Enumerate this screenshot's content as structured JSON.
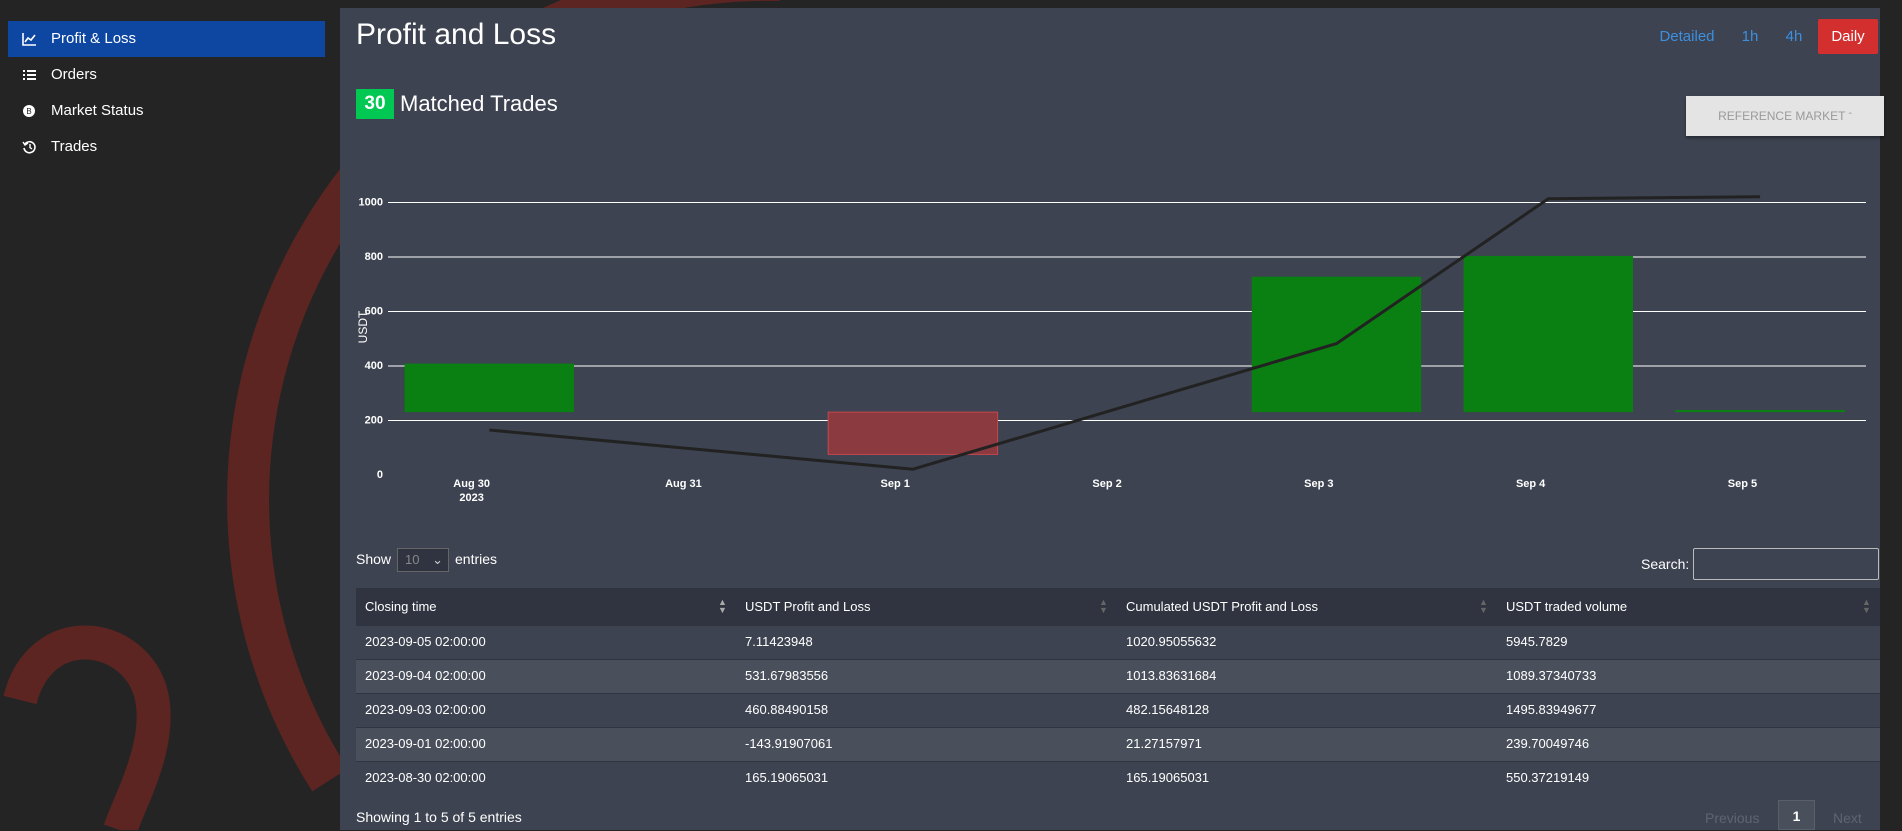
{
  "sidebar": {
    "items": [
      "Profit & Loss",
      "Orders",
      "Market Status",
      "Trades"
    ],
    "active": 0
  },
  "header": {
    "title": "Profit and Loss",
    "timeframes": [
      "Detailed",
      "1h",
      "4h",
      "Daily"
    ],
    "active_timeframe": 3
  },
  "summary": {
    "count": 30,
    "label": "Matched Trades"
  },
  "reference_button": "REFERENCE MARKET",
  "chart_data": {
    "type": "bar",
    "y_label": "USDT",
    "x": [
      "2023-08-30 02:00:00",
      "2023-09-01 02:00:00",
      "2023-09-03 02:00:00",
      "2023-09-04 02:00:00",
      "2023-09-05 02:00:00"
    ],
    "xlim": [
      "2023-08-29 14:45:00",
      "2023-09-05 14:00:00"
    ],
    "xticks": [
      {
        "value": "2023-08-30",
        "label": "Aug 30",
        "sublabel": "2023"
      },
      {
        "value": "2023-08-31",
        "label": "Aug 31"
      },
      {
        "value": "2023-09-01",
        "label": "Sep 1"
      },
      {
        "value": "2023-09-02",
        "label": "Sep 2"
      },
      {
        "value": "2023-09-03",
        "label": "Sep 3"
      },
      {
        "value": "2023-09-04",
        "label": "Sep 4"
      },
      {
        "value": "2023-09-05",
        "label": "Sep 5"
      }
    ],
    "ylim": [
      0,
      1200
    ],
    "yticks": [
      0,
      200,
      400,
      600,
      800,
      1000
    ],
    "y2lim": [
      -214,
      899
    ],
    "grid": true,
    "series": [
      {
        "type": "bar",
        "axis": "y2",
        "color": "#0b8012",
        "negative_color": "#8b3a3f",
        "values": [
          165.19065031,
          -143.91907061,
          460.88490158,
          531.67983556,
          7.11423948
        ]
      },
      {
        "type": "line",
        "color": "#222222",
        "values": [
          165.19065031,
          21.27157971,
          482.15648128,
          1013.83631684,
          1020.95055632
        ]
      }
    ]
  },
  "table": {
    "show_label": "Show",
    "page_size": "10",
    "entries_label": "entries",
    "search_label": "Search:",
    "columns": [
      "Closing time",
      "USDT Profit and Loss",
      "Cumulated USDT Profit and Loss",
      "USDT traded volume"
    ],
    "rows": [
      [
        "2023-09-05 02:00:00",
        "7.11423948",
        "1020.95055632",
        "5945.7829"
      ],
      [
        "2023-09-04 02:00:00",
        "531.67983556",
        "1013.83631684",
        "1089.37340733"
      ],
      [
        "2023-09-03 02:00:00",
        "460.88490158",
        "482.15648128",
        "1495.83949677"
      ],
      [
        "2023-09-01 02:00:00",
        "-143.91907061",
        "21.27157971",
        "239.70049746"
      ],
      [
        "2023-08-30 02:00:00",
        "165.19065031",
        "165.19065031",
        "550.37219149"
      ]
    ],
    "info": "Showing 1 to 5 of 5 entries",
    "pagination": [
      "Previous",
      "1",
      "Next"
    ]
  }
}
